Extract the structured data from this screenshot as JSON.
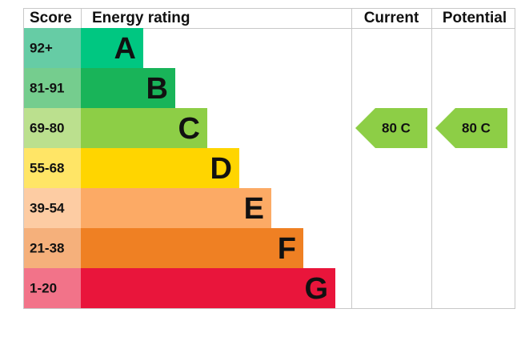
{
  "headers": {
    "score": "Score",
    "rating": "Energy rating",
    "current": "Current",
    "potential": "Potential"
  },
  "bands": [
    {
      "score": "92+",
      "letter": "A",
      "color": "#00c781",
      "score_color": "#66cca5"
    },
    {
      "score": "81-91",
      "letter": "B",
      "color": "#19b459",
      "score_color": "#75cd8e"
    },
    {
      "score": "69-80",
      "letter": "C",
      "color": "#8dce46",
      "score_color": "#bbe08e"
    },
    {
      "score": "55-68",
      "letter": "D",
      "color": "#ffd500",
      "score_color": "#ffe566"
    },
    {
      "score": "39-54",
      "letter": "E",
      "color": "#fcaa65",
      "score_color": "#fdcca3"
    },
    {
      "score": "21-38",
      "letter": "F",
      "color": "#ef8023",
      "score_color": "#f5b07b"
    },
    {
      "score": "1-20",
      "letter": "G",
      "color": "#e9153b",
      "score_color": "#f27389"
    }
  ],
  "current": {
    "label": "80 C",
    "band": "C"
  },
  "potential": {
    "label": "80 C",
    "band": "C"
  }
}
